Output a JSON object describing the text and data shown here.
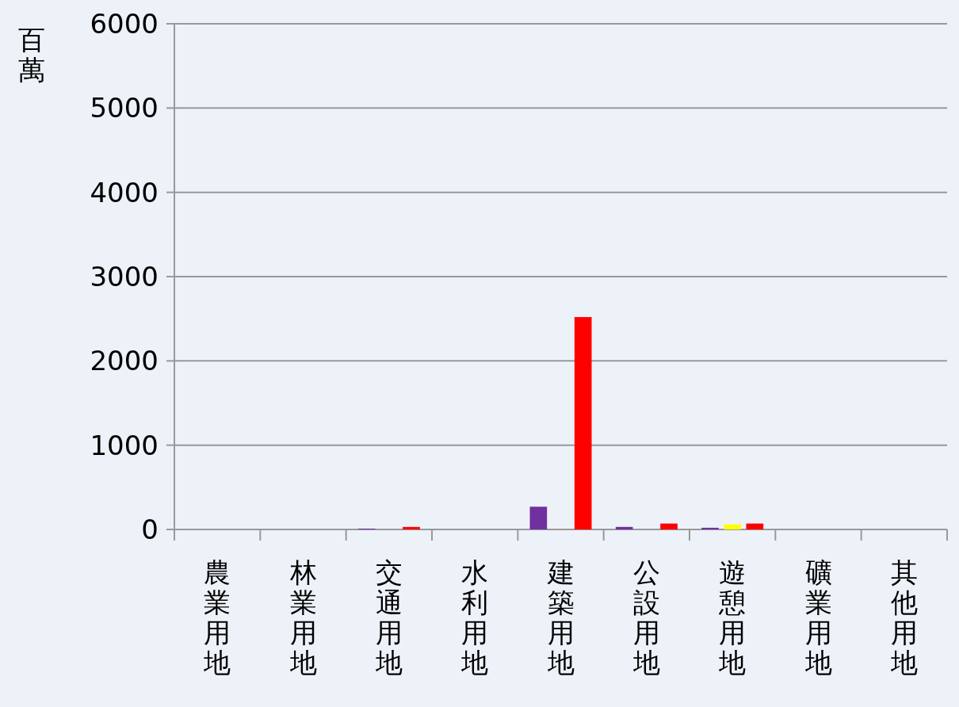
{
  "chart_data": {
    "type": "bar",
    "ylabel": "百萬",
    "categories": [
      "農業用地",
      "林業用地",
      "交通用地",
      "水利用地",
      "建築用地",
      "公設用地",
      "遊憩用地",
      "礦業用地",
      "其他用地"
    ],
    "series": [
      {
        "color": "#7030a0",
        "values": [
          0,
          0,
          10,
          0,
          270,
          30,
          20,
          0,
          0
        ]
      },
      {
        "color": "#ffff00",
        "values": [
          0,
          0,
          0,
          0,
          0,
          0,
          60,
          0,
          0
        ]
      },
      {
        "color": "#ff0000",
        "values": [
          0,
          0,
          30,
          0,
          2520,
          70,
          70,
          0,
          0
        ]
      }
    ],
    "ylim": [
      0,
      6000
    ],
    "yticks": [
      0,
      1000,
      2000,
      3000,
      4000,
      5000,
      6000
    ],
    "grid": "y"
  }
}
